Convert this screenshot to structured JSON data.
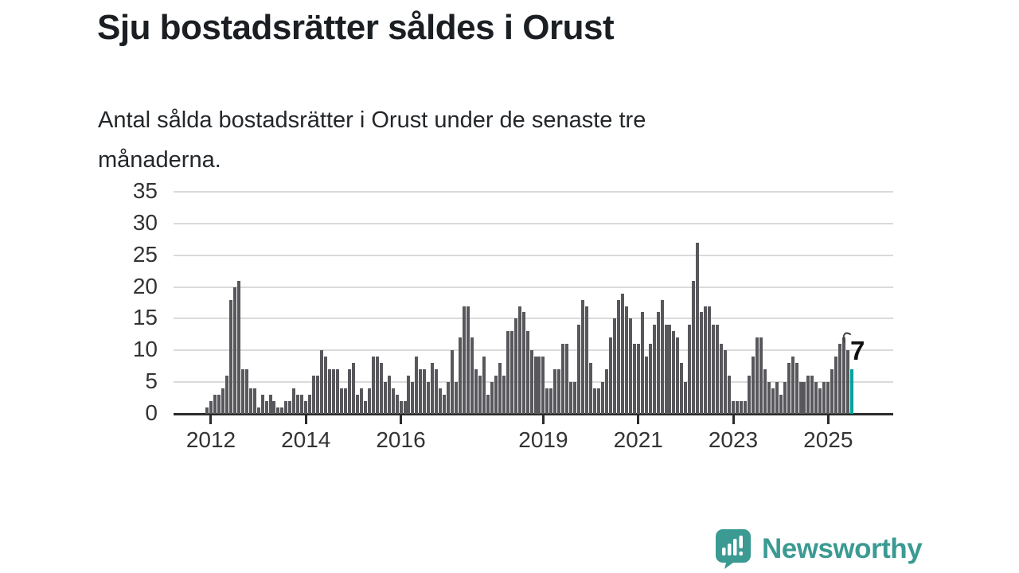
{
  "title": "Sju bostadsrätter såldes i Orust",
  "subtitle_lines": [
    "Antal sålda bostadsrätter i Orust under de senaste tre",
    "månaderna."
  ],
  "annotation": {
    "label": "7"
  },
  "branding": {
    "name": "Newsworthy",
    "icon": "newsworthy-chart-bubble-icon",
    "color": "#3b9a92"
  },
  "colors": {
    "bar": "#58585c",
    "highlight": "#00a39e",
    "grid": "#dadada",
    "axis": "#2b2b2b",
    "label_text": "#333333",
    "title_text": "#1b1f23"
  },
  "chart_data": {
    "type": "bar",
    "title": "Sju bostadsrätter såldes i Orust",
    "subtitle": "Antal sålda bostadsrätter i Orust under de senaste tre månaderna.",
    "ylabel": "",
    "xlabel": "",
    "ylim": [
      0,
      35
    ],
    "y_ticks": [
      0,
      5,
      10,
      15,
      20,
      25,
      30,
      35
    ],
    "grid": true,
    "legend": false,
    "unit": "sålda bostadsrätter per rullande tremånadersperiod",
    "x_range_note": "månadsvisa staplar från slutet av 2011 till mitten av 2025",
    "x_ticks": [
      {
        "index": 1,
        "label": "2012"
      },
      {
        "index": 25,
        "label": "2014"
      },
      {
        "index": 49,
        "label": "2016"
      },
      {
        "index": 85,
        "label": "2019"
      },
      {
        "index": 109,
        "label": "2021"
      },
      {
        "index": 133,
        "label": "2023"
      },
      {
        "index": 157,
        "label": "2025"
      }
    ],
    "values": [
      1,
      2,
      3,
      3,
      4,
      6,
      18,
      20,
      21,
      7,
      7,
      4,
      4,
      1,
      3,
      2,
      3,
      2,
      1,
      1,
      2,
      2,
      4,
      3,
      3,
      2,
      3,
      6,
      6,
      10,
      9,
      7,
      7,
      7,
      4,
      4,
      7,
      8,
      3,
      4,
      2,
      4,
      9,
      9,
      8,
      5,
      6,
      4,
      3,
      2,
      2,
      6,
      5,
      9,
      7,
      7,
      5,
      8,
      7,
      4,
      3,
      5,
      10,
      5,
      12,
      17,
      17,
      12,
      7,
      6,
      9,
      3,
      5,
      6,
      8,
      6,
      13,
      13,
      15,
      17,
      16,
      13,
      10,
      9,
      9,
      9,
      4,
      4,
      7,
      7,
      11,
      11,
      5,
      5,
      14,
      18,
      17,
      8,
      4,
      4,
      5,
      7,
      12,
      15,
      18,
      19,
      17,
      15,
      11,
      11,
      16,
      9,
      11,
      14,
      16,
      18,
      14,
      14,
      13,
      12,
      8,
      5,
      14,
      21,
      27,
      16,
      17,
      17,
      14,
      14,
      11,
      10,
      6,
      2,
      2,
      2,
      2,
      6,
      9,
      12,
      12,
      7,
      5,
      4,
      5,
      3,
      5,
      8,
      9,
      8,
      5,
      5,
      6,
      6,
      5,
      4,
      5,
      5,
      7,
      9,
      11,
      12,
      10,
      7
    ],
    "highlight_index": 163,
    "highlight_value_label": "7"
  }
}
